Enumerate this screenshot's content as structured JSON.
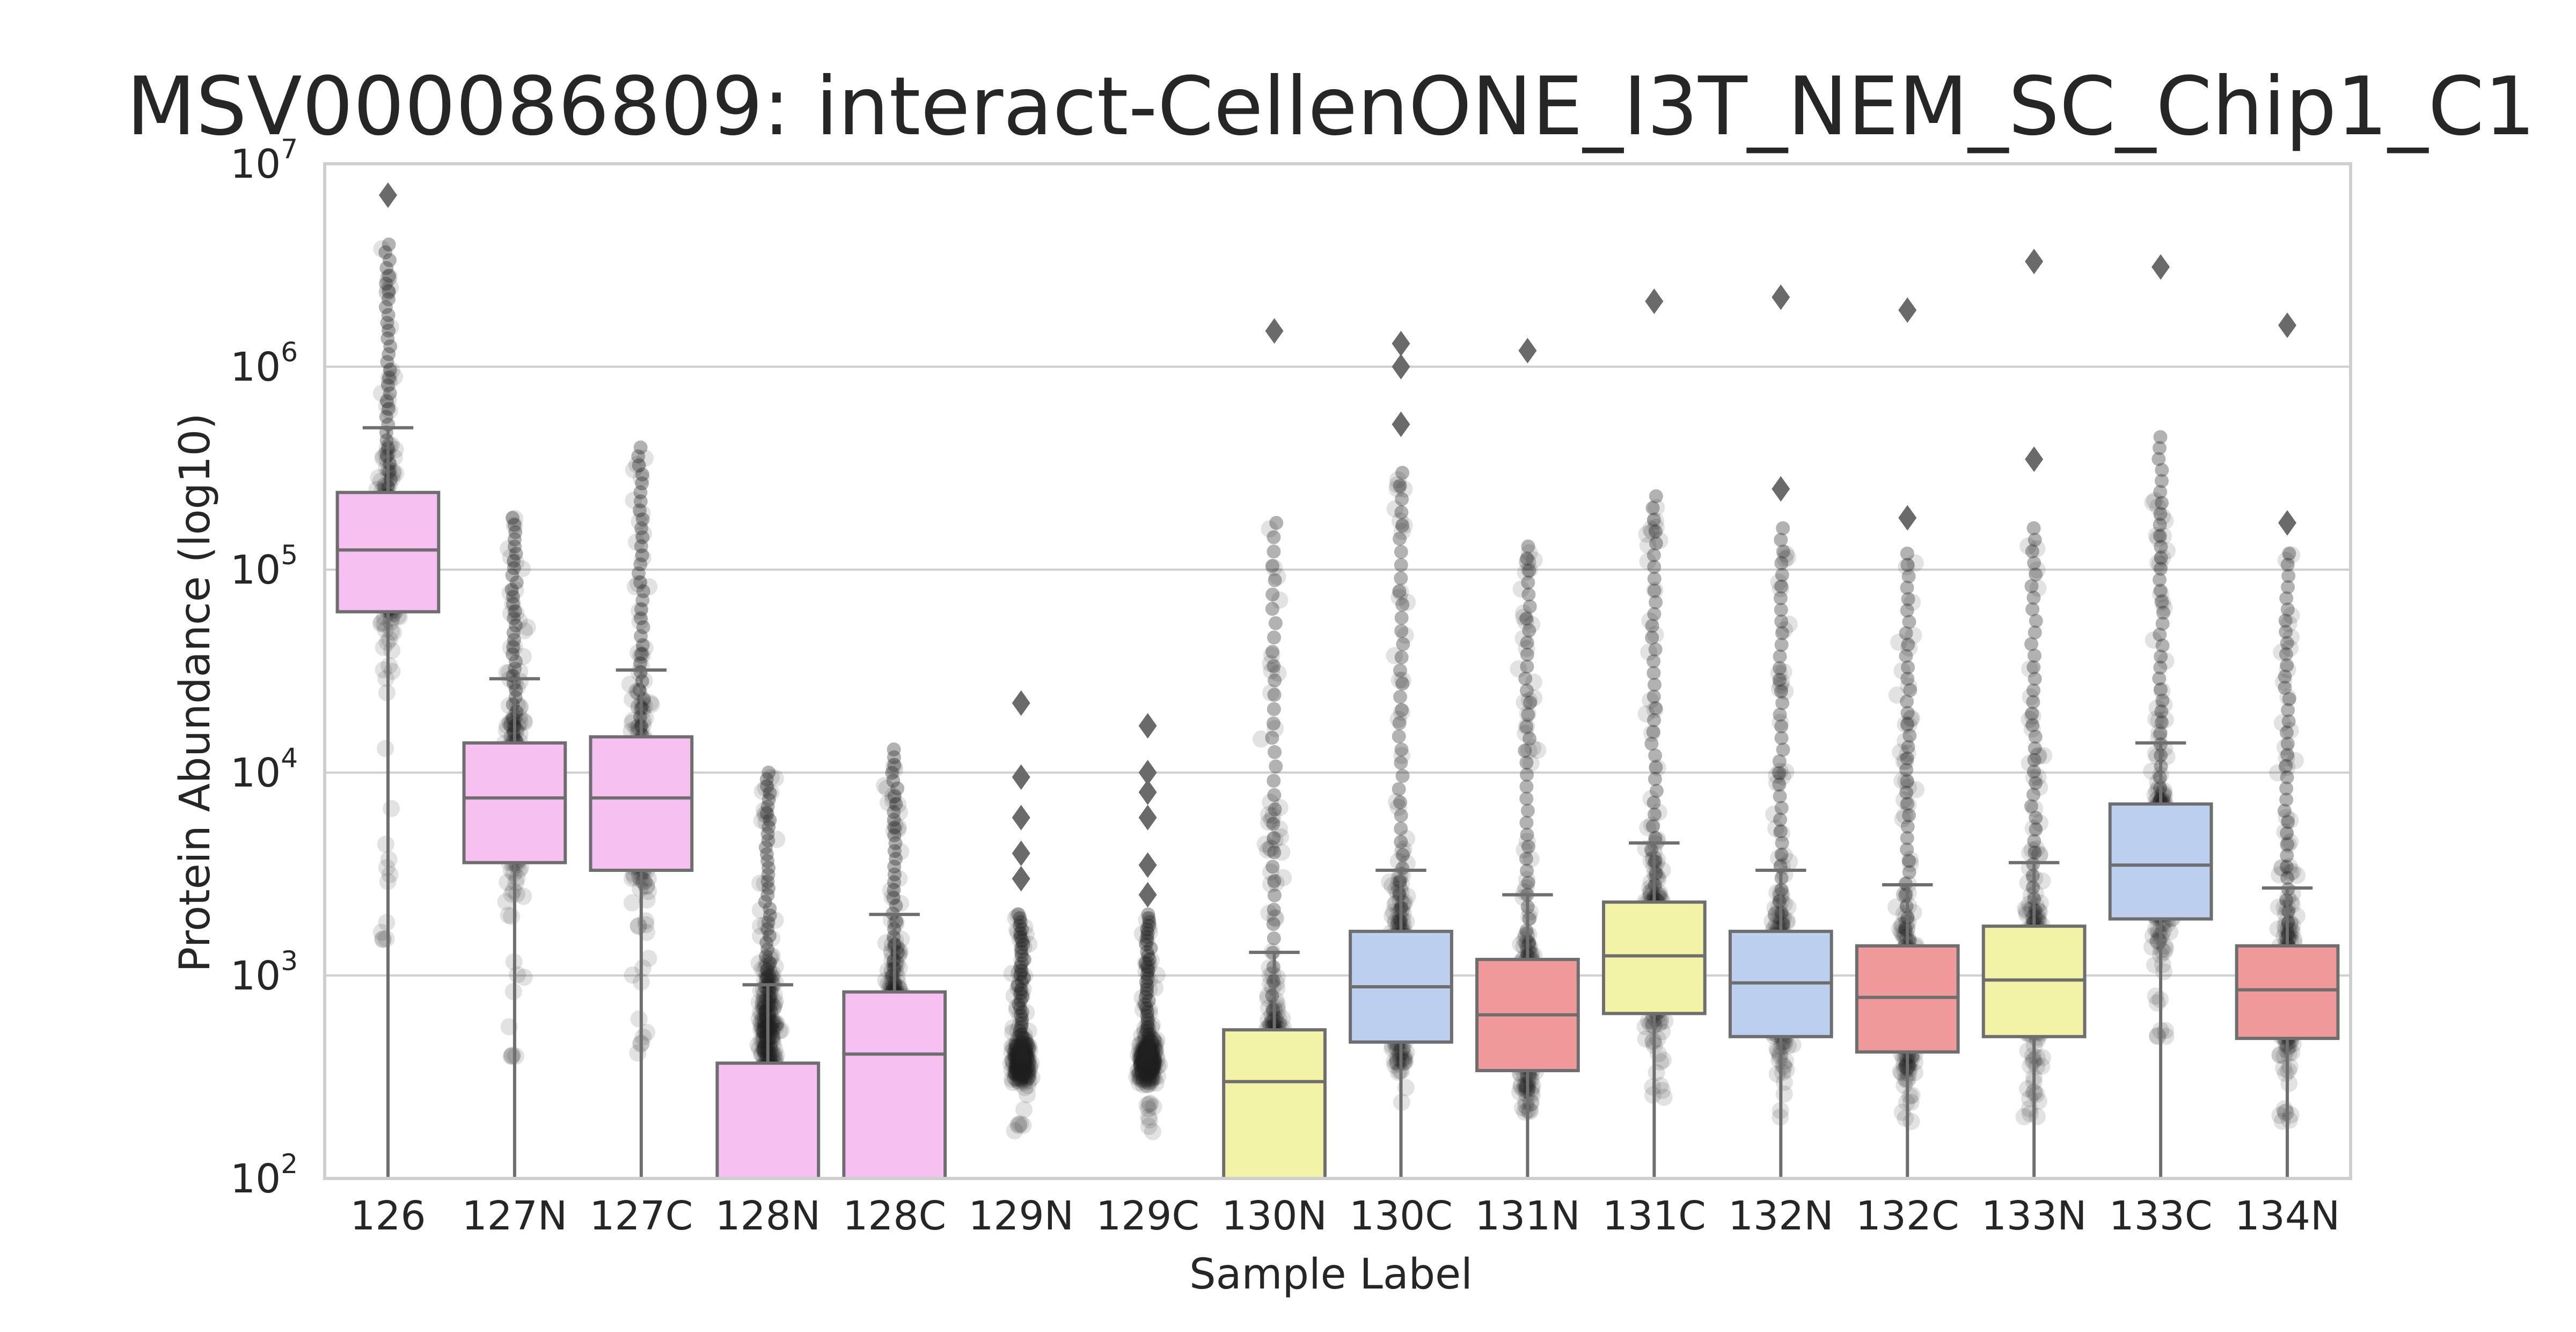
{
  "chart_data": {
    "type": "box",
    "title": "MSV000086809: interact-CellenONE_I3T_NEM_SC_Chip1_C1",
    "xlabel": "Sample Label",
    "ylabel": "Protein Abundance (log10)",
    "yscale": "log",
    "ylim": [
      100,
      10000000
    ],
    "yticks": [
      {
        "base": "10",
        "exp": "2"
      },
      {
        "base": "10",
        "exp": "3"
      },
      {
        "base": "10",
        "exp": "4"
      },
      {
        "base": "10",
        "exp": "5"
      },
      {
        "base": "10",
        "exp": "6"
      },
      {
        "base": "10",
        "exp": "7"
      }
    ],
    "grid": "horizontal",
    "colors": {
      "pink": "#f6c1f1",
      "yellow": "#f2f3a6",
      "blue": "#bdcfee",
      "red": "#f0999a",
      "box_edge": "#6e6e6e",
      "points": "#222222",
      "frame": "#cfcfcf",
      "grid": "#d0d0d0"
    },
    "categories": [
      "126",
      "127N",
      "127C",
      "128N",
      "128C",
      "129N",
      "129C",
      "130N",
      "130C",
      "131N",
      "131C",
      "132N",
      "132C",
      "133N",
      "133C",
      "134N"
    ],
    "boxes": [
      {
        "label": "126",
        "color": "pink",
        "q1": 62000,
        "median": 125000,
        "q3": 240000,
        "whisker_low": 100,
        "whisker_high": 500000,
        "point_low": 1500,
        "point_high": 4000000,
        "outliers": [
          7000000
        ]
      },
      {
        "label": "127N",
        "color": "pink",
        "q1": 3600,
        "median": 7500,
        "q3": 14000,
        "whisker_low": 100,
        "whisker_high": 29000,
        "point_low": 400,
        "point_high": 180000,
        "outliers": []
      },
      {
        "label": "127C",
        "color": "pink",
        "q1": 3300,
        "median": 7500,
        "q3": 15000,
        "whisker_low": 100,
        "whisker_high": 32000,
        "point_low": 400,
        "point_high": 400000,
        "outliers": []
      },
      {
        "label": "128N",
        "color": "pink",
        "q1": 100,
        "median": 100,
        "q3": 370,
        "whisker_low": 100,
        "whisker_high": 900,
        "point_low": 220,
        "point_high": 10000,
        "outliers": []
      },
      {
        "label": "128C",
        "color": "pink",
        "q1": 100,
        "median": 410,
        "q3": 830,
        "whisker_low": 100,
        "whisker_high": 2000,
        "point_low": 230,
        "point_high": 13000,
        "outliers": []
      },
      {
        "label": "129N",
        "color": "pink",
        "q1": null,
        "median": null,
        "q3": null,
        "whisker_low": null,
        "whisker_high": null,
        "point_low": 170,
        "point_high": 2000,
        "outliers": [
          3000,
          4000,
          6000,
          9500,
          22000
        ]
      },
      {
        "label": "129C",
        "color": "pink",
        "q1": null,
        "median": null,
        "q3": null,
        "whisker_low": null,
        "whisker_high": null,
        "point_low": 170,
        "point_high": 2000,
        "outliers": [
          2500,
          3500,
          6000,
          8000,
          10000,
          17000
        ]
      },
      {
        "label": "130N",
        "color": "yellow",
        "q1": 100,
        "median": 300,
        "q3": 540,
        "whisker_low": 100,
        "whisker_high": 1300,
        "point_low": 240,
        "point_high": 170000,
        "outliers": [
          1500000
        ]
      },
      {
        "label": "130C",
        "color": "blue",
        "q1": 470,
        "median": 880,
        "q3": 1650,
        "whisker_low": 100,
        "whisker_high": 3300,
        "point_low": 230,
        "point_high": 300000,
        "outliers": [
          520000,
          1000000,
          1300000
        ]
      },
      {
        "label": "131N",
        "color": "red",
        "q1": 340,
        "median": 640,
        "q3": 1200,
        "whisker_low": 100,
        "whisker_high": 2500,
        "point_low": 200,
        "point_high": 130000,
        "outliers": [
          1200000
        ]
      },
      {
        "label": "131C",
        "color": "yellow",
        "q1": 650,
        "median": 1250,
        "q3": 2300,
        "whisker_low": 100,
        "whisker_high": 4500,
        "point_low": 250,
        "point_high": 230000,
        "outliers": [
          2100000
        ]
      },
      {
        "label": "132N",
        "color": "blue",
        "q1": 500,
        "median": 920,
        "q3": 1650,
        "whisker_low": 100,
        "whisker_high": 3300,
        "point_low": 200,
        "point_high": 160000,
        "outliers": [
          250000,
          2200000
        ]
      },
      {
        "label": "132C",
        "color": "red",
        "q1": 420,
        "median": 780,
        "q3": 1400,
        "whisker_low": 100,
        "whisker_high": 2800,
        "point_low": 190,
        "point_high": 120000,
        "outliers": [
          180000,
          1900000
        ]
      },
      {
        "label": "133N",
        "color": "yellow",
        "q1": 500,
        "median": 950,
        "q3": 1750,
        "whisker_low": 100,
        "whisker_high": 3600,
        "point_low": 200,
        "point_high": 160000,
        "outliers": [
          350000,
          3300000
        ]
      },
      {
        "label": "133C",
        "color": "blue",
        "q1": 1900,
        "median": 3500,
        "q3": 7000,
        "whisker_low": 100,
        "whisker_high": 14000,
        "point_low": 500,
        "point_high": 450000,
        "outliers": [
          3100000
        ]
      },
      {
        "label": "134N",
        "color": "red",
        "q1": 490,
        "median": 850,
        "q3": 1400,
        "whisker_low": 100,
        "whisker_high": 2700,
        "point_low": 190,
        "point_high": 120000,
        "outliers": [
          170000,
          1600000
        ]
      }
    ]
  }
}
